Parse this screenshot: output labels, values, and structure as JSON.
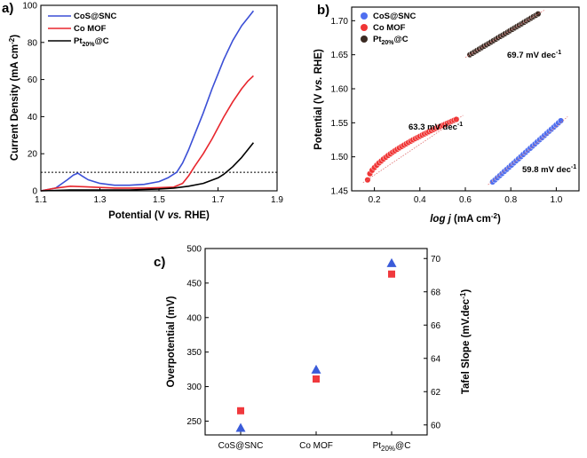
{
  "chart_data": [
    {
      "panel": "a)",
      "type": "line",
      "xlabel_parts": [
        "Potential (V ",
        "vs.",
        " RHE)"
      ],
      "ylabel": "Current Density (mA cm",
      "ylabel_sup": "-2",
      "ylabel_end": ")",
      "xlim": [
        1.1,
        1.9
      ],
      "ylim": [
        0,
        100
      ],
      "xticks": [
        "1.1",
        "1.3",
        "1.5",
        "1.7",
        "1.9"
      ],
      "xtick_values": [
        1.1,
        1.3,
        1.5,
        1.7,
        1.9
      ],
      "yticks": [
        "0",
        "20",
        "40",
        "60",
        "80",
        "100"
      ],
      "ytick_values": [
        0,
        20,
        40,
        60,
        80,
        100
      ],
      "reference_line_y": 10,
      "series": [
        {
          "name": "CoS@SNC",
          "color": "#3b4fd6",
          "x": [
            1.1,
            1.15,
            1.19,
            1.21,
            1.225,
            1.24,
            1.26,
            1.3,
            1.35,
            1.4,
            1.45,
            1.5,
            1.53,
            1.56,
            1.58,
            1.6,
            1.62,
            1.65,
            1.68,
            1.7,
            1.72,
            1.75,
            1.78,
            1.8,
            1.82
          ],
          "y": [
            0,
            1.5,
            6,
            8.5,
            9.5,
            8,
            6,
            4,
            3,
            3,
            3.5,
            5,
            7,
            10,
            15,
            22,
            30,
            42,
            55,
            63,
            71,
            81,
            89,
            93,
            97
          ]
        },
        {
          "name": "Co MOF",
          "color": "#e8262d",
          "x": [
            1.1,
            1.15,
            1.2,
            1.25,
            1.3,
            1.35,
            1.4,
            1.45,
            1.5,
            1.55,
            1.58,
            1.6,
            1.62,
            1.65,
            1.68,
            1.7,
            1.72,
            1.75,
            1.78,
            1.8,
            1.82
          ],
          "y": [
            0,
            1.5,
            2.5,
            2.2,
            1.8,
            1.5,
            1.5,
            1.5,
            1.7,
            2,
            4,
            8,
            13,
            20,
            28,
            34,
            40,
            48,
            55,
            59,
            62
          ]
        },
        {
          "name": "Pt20%@C",
          "color": "#000000",
          "x": [
            1.1,
            1.2,
            1.3,
            1.4,
            1.5,
            1.55,
            1.6,
            1.65,
            1.7,
            1.72,
            1.75,
            1.78,
            1.8,
            1.82
          ],
          "y": [
            0,
            0.5,
            0.5,
            0.5,
            1,
            1.5,
            2.5,
            4,
            7,
            9,
            13,
            18,
            22,
            26
          ]
        }
      ],
      "legend": [
        {
          "main": "CoS@SNC",
          "sub": ""
        },
        {
          "main": "Co MOF",
          "sub": ""
        },
        {
          "main": "Pt",
          "sub": "20%",
          "tail": "@C"
        }
      ]
    },
    {
      "panel": "b)",
      "type": "scatter",
      "xlabel_parts": [
        "log j",
        " (mA cm",
        "-2",
        ")"
      ],
      "ylabel_parts": [
        "Potential (V ",
        "vs.",
        " RHE)"
      ],
      "xlim": [
        0.1,
        1.1
      ],
      "ylim": [
        1.45,
        1.72
      ],
      "xticks": [
        "0.2",
        "0.4",
        "0.6",
        "0.8",
        "1.0"
      ],
      "xtick_values": [
        0.2,
        0.4,
        0.6,
        0.8,
        1.0
      ],
      "yticks": [
        "1.45",
        "1.50",
        "1.55",
        "1.60",
        "1.65",
        "1.70"
      ],
      "ytick_values": [
        1.45,
        1.5,
        1.55,
        1.6,
        1.65,
        1.7
      ],
      "series": [
        {
          "name": "CoS@SNC",
          "color": "#4f6ff0",
          "x_start": 0.72,
          "x_end": 1.02,
          "y_start": 1.463,
          "y_end": 1.553,
          "n": 30,
          "curve": "linear",
          "tafel": "59.8 mV dec",
          "tafel_sup": "-1"
        },
        {
          "name": "Co MOF",
          "color": "#f03535",
          "x_start": 0.17,
          "x_end": 0.56,
          "y_start": 1.466,
          "y_end": 1.555,
          "n": 40,
          "curve": "concave",
          "tafel": "63.3 mV dec",
          "tafel_sup": "-1"
        },
        {
          "name": "Pt20%@C",
          "color": "#3a2a22",
          "x_start": 0.62,
          "x_end": 0.92,
          "y_start": 1.65,
          "y_end": 1.71,
          "n": 30,
          "curve": "linear",
          "tafel": "69.7 mV dec",
          "tafel_sup": "-1"
        }
      ],
      "legend": [
        {
          "main": "CoS@SNC",
          "sub": ""
        },
        {
          "main": "Co MOF",
          "sub": ""
        },
        {
          "main": "Pt",
          "sub": "20%",
          "tail": "@C"
        }
      ]
    },
    {
      "panel": "c)",
      "type": "scatter",
      "categories": [
        "CoS@SNC",
        "Co MOF",
        "Pt20%@C"
      ],
      "category_labels": [
        {
          "main": "CoS@SNC",
          "sub": ""
        },
        {
          "main": "Co MOF",
          "sub": ""
        },
        {
          "main": "Pt",
          "sub": "20%",
          "tail": "@C"
        }
      ],
      "ylabel": "Overpotential (mV)",
      "ylim": [
        230,
        500
      ],
      "yticks": [
        "250",
        "300",
        "350",
        "400",
        "450",
        "500"
      ],
      "ytick_values": [
        250,
        300,
        350,
        400,
        450,
        500
      ],
      "y2label": "Tafel Slope (mV.dec",
      "y2label_sup": "-1",
      "y2label_end": ")",
      "y2lim": [
        59.4,
        70.6
      ],
      "y2ticks": [
        "60",
        "62",
        "64",
        "66",
        "68",
        "70"
      ],
      "y2tick_values": [
        60,
        62,
        64,
        66,
        68,
        70
      ],
      "series": [
        {
          "name": "Overpotential",
          "axis": "left",
          "marker": "square",
          "color": "#f0393d",
          "values": [
            265,
            311,
            463
          ]
        },
        {
          "name": "Tafel Slope",
          "axis": "right",
          "marker": "triangle",
          "color": "#3a5bd9",
          "values": [
            59.8,
            63.3,
            69.7
          ]
        }
      ],
      "ylabel_color": "#f0393d",
      "y2label_color": "#3a5bd9"
    }
  ]
}
